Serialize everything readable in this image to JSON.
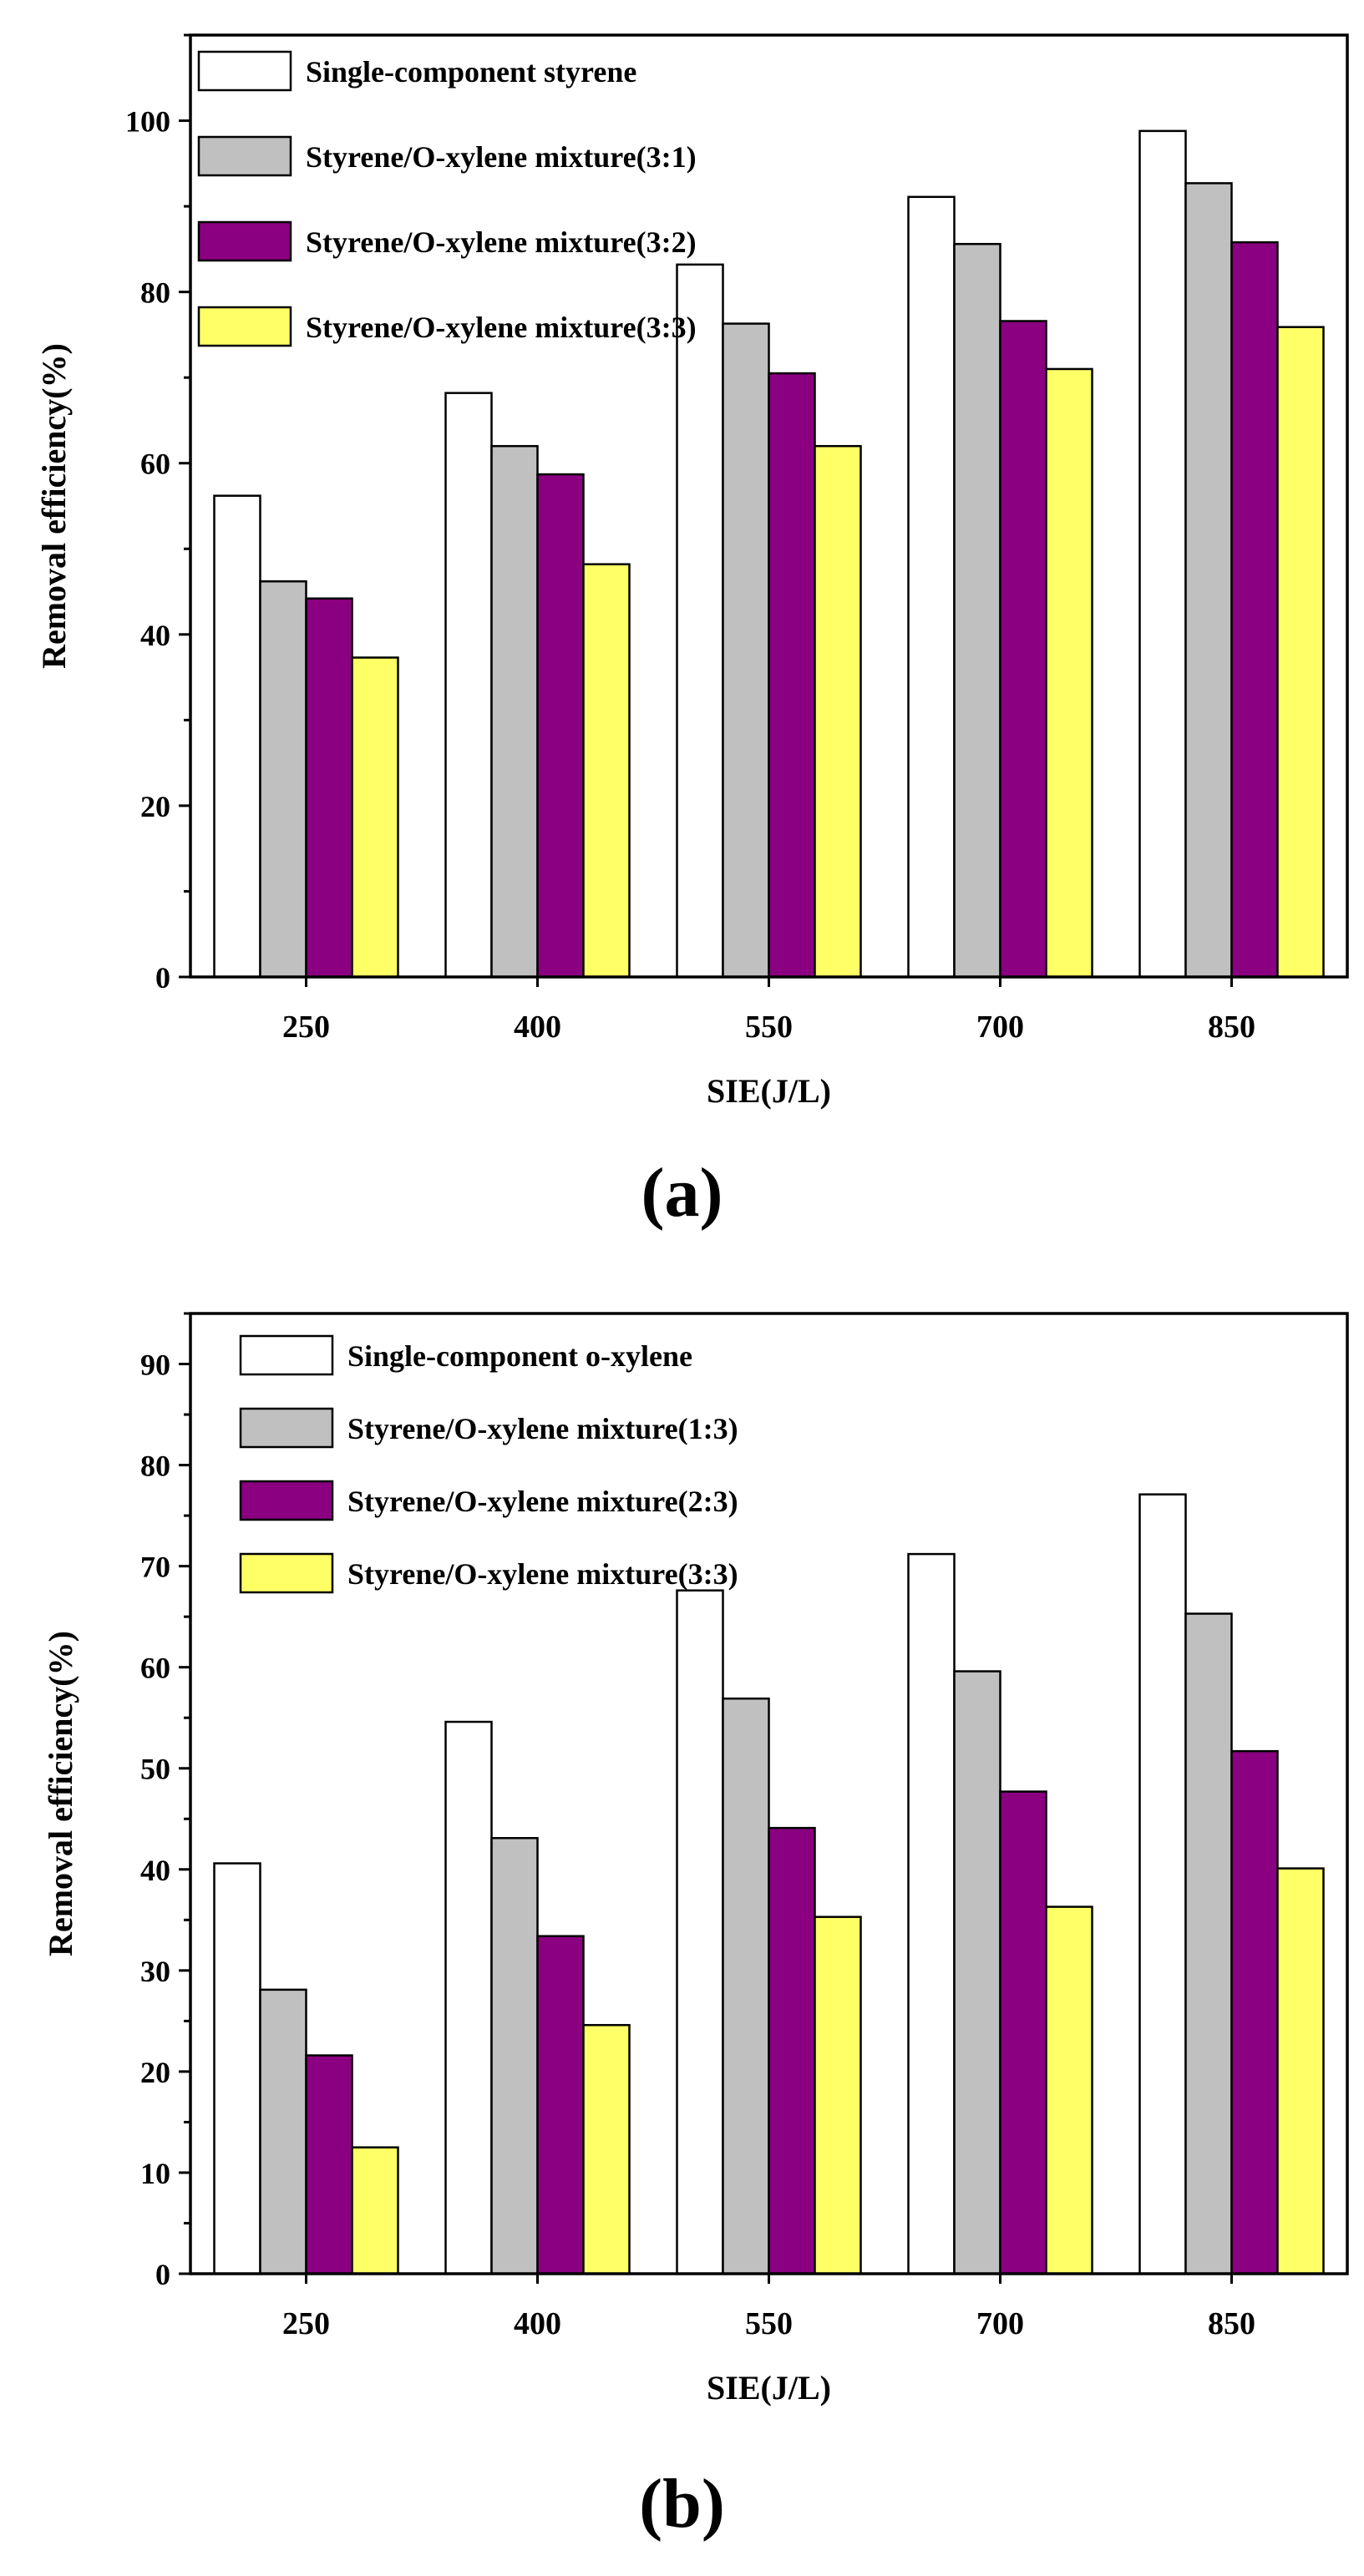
{
  "panels": [
    {
      "label": "(a)",
      "chart_data": {
        "type": "bar",
        "title": "",
        "xlabel": "SIE(J/L)",
        "ylabel": "Removal efficiency(%)",
        "ylim": [
          0,
          110
        ],
        "yticks": [
          0,
          20,
          40,
          60,
          80,
          100
        ],
        "minor_tick_step": 10,
        "categories": [
          "250",
          "400",
          "550",
          "700",
          "850"
        ],
        "legend_position": "top-left",
        "series": [
          {
            "name": "Single-component styrene",
            "color": "#ffffff",
            "values": [
              56.2,
              68.2,
              83.2,
              91.1,
              98.8
            ]
          },
          {
            "name": "Styrene/O-xylene mixture(3:1)",
            "color": "#c0c0c0",
            "values": [
              46.2,
              62.0,
              76.3,
              85.6,
              92.7
            ]
          },
          {
            "name": "Styrene/O-xylene mixture(3:2)",
            "color": "#8b0080",
            "values": [
              44.2,
              58.7,
              70.5,
              76.6,
              85.8
            ]
          },
          {
            "name": "Styrene/O-xylene mixture(3:3)",
            "color": "#ffff66",
            "values": [
              37.3,
              48.2,
              62.0,
              71.0,
              75.9
            ]
          }
        ]
      }
    },
    {
      "label": "(b)",
      "chart_data": {
        "type": "bar",
        "title": "",
        "xlabel": "SIE(J/L)",
        "ylabel": "Removal efficiency(%)",
        "ylim": [
          0,
          95
        ],
        "yticks": [
          0,
          10,
          20,
          30,
          40,
          50,
          60,
          70,
          80,
          90
        ],
        "minor_tick_step": 5,
        "categories": [
          "250",
          "400",
          "550",
          "700",
          "850"
        ],
        "legend_position": "top-left",
        "series": [
          {
            "name": "Single-component o-xylene",
            "color": "#ffffff",
            "values": [
              40.6,
              54.6,
              67.6,
              71.2,
              77.1
            ]
          },
          {
            "name": "Styrene/O-xylene mixture(1:3)",
            "color": "#c0c0c0",
            "values": [
              28.1,
              43.1,
              56.9,
              59.6,
              65.3
            ]
          },
          {
            "name": "Styrene/O-xylene mixture(2:3)",
            "color": "#8b0080",
            "values": [
              21.6,
              33.4,
              44.1,
              47.7,
              51.7
            ]
          },
          {
            "name": "Styrene/O-xylene mixture(3:3)",
            "color": "#ffff66",
            "values": [
              12.5,
              24.6,
              35.3,
              36.3,
              40.1
            ]
          }
        ]
      }
    }
  ]
}
